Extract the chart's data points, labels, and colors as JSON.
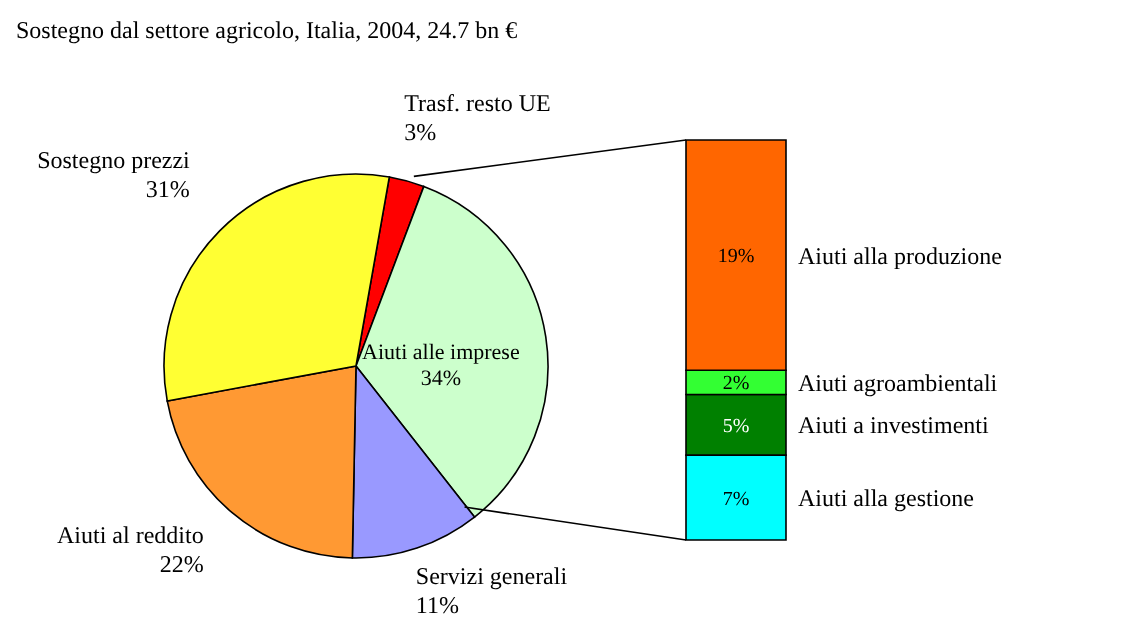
{
  "chart_data": [
    {
      "type": "pie",
      "title": "Sostegno dal settore agricolo, Italia, 2004, 24.7 bn €",
      "categories": [
        "Trasf. resto UE",
        "Aiuti alle imprese",
        "Servizi generali",
        "Aiuti al reddito",
        "Sostegno prezzi"
      ],
      "values": [
        3,
        34,
        11,
        22,
        31
      ],
      "colors": [
        "#ff0000",
        "#ccffcc",
        "#9999ff",
        "#ff9933",
        "#ffff33"
      ],
      "value_labels": [
        "3%",
        "34%",
        "11%",
        "22%",
        "31%"
      ]
    },
    {
      "type": "bar",
      "stacked": true,
      "tick_labels": false,
      "categories": [
        null
      ],
      "series": [
        {
          "name": "Aiuti alla gestione",
          "color": "#00ffff",
          "values": [
            7
          ],
          "value_labels": [
            "7%"
          ]
        },
        {
          "name": "Aiuti a investimenti",
          "color": "#008000",
          "values": [
            5
          ],
          "value_labels": [
            "5%"
          ]
        },
        {
          "name": "Aiuti agroambientali",
          "color": "#33ff33",
          "values": [
            2
          ],
          "value_labels": [
            "2%"
          ]
        },
        {
          "name": "Aiuti alla produzione",
          "color": "#ff6600",
          "values": [
            19
          ],
          "value_labels": [
            "19%"
          ]
        }
      ]
    }
  ]
}
